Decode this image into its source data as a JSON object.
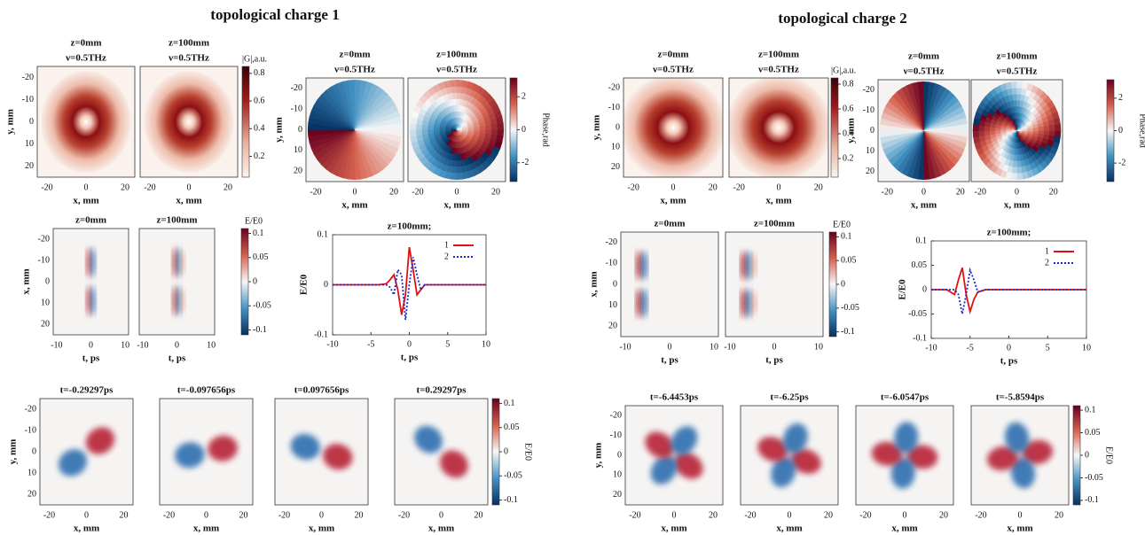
{
  "figures": [
    {
      "title": "topological charge 1",
      "intensity": {
        "panels": [
          {
            "z": "z=0mm",
            "nu": "ν=0.5THz"
          },
          {
            "z": "z=100mm",
            "nu": "ν=0.5THz"
          }
        ],
        "xlabel": "x, mm",
        "ylabel": "y, mm",
        "xlim": [
          -25,
          25
        ],
        "ylim": [
          -25,
          25
        ],
        "xticks": [
          -20,
          0,
          20
        ],
        "yticks": [
          -20,
          -10,
          0,
          10,
          20
        ],
        "colorbar": {
          "label": "|G|,a.u.",
          "lim": [
            0.05,
            0.85
          ],
          "ticks": [
            0.2,
            0.4,
            0.6,
            0.8
          ]
        }
      },
      "phase": {
        "panels": [
          {
            "z": "z=0mm",
            "nu": "ν=0.5THz"
          },
          {
            "z": "z=100mm",
            "nu": "ν=0.5THz"
          }
        ],
        "xlabel": "x, mm",
        "ylabel": "y, mm",
        "xlim": [
          -25,
          25
        ],
        "ylim": [
          -25,
          25
        ],
        "xticks": [
          -20,
          0,
          20
        ],
        "yticks": [
          -20,
          -10,
          0,
          10,
          20
        ],
        "colorbar": {
          "label": "Phase,rad",
          "lim": [
            -3.14,
            3.14
          ],
          "ticks": [
            -2,
            0,
            2
          ]
        }
      },
      "field": {
        "panels": [
          {
            "z": "z=0mm"
          },
          {
            "z": "z=100mm"
          }
        ],
        "xlabel": "t, ps",
        "ylabel": "x, mm",
        "xlim": [
          -11,
          11
        ],
        "ylim": [
          -25,
          25
        ],
        "xticks": [
          -10,
          0,
          10
        ],
        "yticks": [
          -20,
          -10,
          0,
          10,
          20
        ],
        "colorbar": {
          "label": "E/E0",
          "lim": [
            -0.11,
            0.11
          ],
          "ticks": [
            -0.1,
            -0.05,
            0,
            0.05,
            0.1
          ]
        }
      },
      "snapshots": {
        "panels": [
          {
            "t": "t=-0.29297ps"
          },
          {
            "t": "t=-0.097656ps"
          },
          {
            "t": "t=0.097656ps"
          },
          {
            "t": "t=0.29297ps"
          }
        ],
        "xlabel": "x, mm",
        "ylabel": "y, mm",
        "xlim": [
          -25,
          25
        ],
        "ylim": [
          -25,
          25
        ],
        "xticks": [
          -20,
          0,
          20
        ],
        "yticks": [
          -20,
          -10,
          0,
          10,
          20
        ],
        "colorbar": {
          "label": "E/E0",
          "lim": [
            -0.11,
            0.11
          ],
          "ticks": [
            -0.1,
            -0.05,
            0,
            0.05,
            0.1
          ]
        }
      }
    },
    {
      "title": "topological charge  2",
      "intensity": {
        "panels": [
          {
            "z": "z=0mm",
            "nu": "ν=0.5THz"
          },
          {
            "z": "z=100mm",
            "nu": "ν=0.5THz"
          }
        ],
        "xlabel": "x, mm",
        "ylabel": "y, mm",
        "xlim": [
          -25,
          25
        ],
        "ylim": [
          -25,
          25
        ],
        "xticks": [
          -20,
          0,
          20
        ],
        "yticks": [
          -20,
          -10,
          0,
          10,
          20
        ],
        "colorbar": {
          "label": "|G|,a.u.",
          "lim": [
            0.05,
            0.85
          ],
          "ticks": [
            0.2,
            0.4,
            0.6,
            0.8
          ]
        }
      },
      "phase": {
        "panels": [
          {
            "z": "z=0mm",
            "nu": "ν=0.5THz"
          },
          {
            "z": "z=100mm",
            "nu": "ν=0.5THz"
          }
        ],
        "xlabel": "x, mm",
        "ylabel": "y, mm",
        "xlim": [
          -25,
          25
        ],
        "ylim": [
          -25,
          25
        ],
        "xticks": [
          -20,
          0,
          20
        ],
        "yticks": [
          -20,
          -10,
          0,
          10,
          20
        ],
        "colorbar": {
          "label": "Phase,rad",
          "lim": [
            -3.14,
            3.14
          ],
          "ticks": [
            -2,
            0,
            2
          ]
        }
      },
      "field": {
        "panels": [
          {
            "z": "z=0mm"
          },
          {
            "z": "z=100mm"
          }
        ],
        "xlabel": "t, ps",
        "ylabel": "x, mm",
        "xlim": [
          -11,
          11
        ],
        "ylim": [
          -25,
          25
        ],
        "xticks": [
          -10,
          0,
          10
        ],
        "yticks": [
          -20,
          -10,
          0,
          10,
          20
        ],
        "colorbar": {
          "label": "E/E0",
          "lim": [
            -0.11,
            0.11
          ],
          "ticks": [
            -0.1,
            -0.05,
            0,
            0.05,
            0.1
          ]
        }
      },
      "snapshots": {
        "panels": [
          {
            "t": "t=-6.4453ps"
          },
          {
            "t": "t=-6.25ps"
          },
          {
            "t": "t=-6.0547ps"
          },
          {
            "t": "t=-5.8594ps"
          }
        ],
        "xlabel": "x, mm",
        "ylabel": "y, mm",
        "xlim": [
          -25,
          25
        ],
        "ylim": [
          -25,
          25
        ],
        "xticks": [
          -20,
          0,
          20
        ],
        "yticks": [
          -20,
          -10,
          0,
          10,
          20
        ],
        "colorbar": {
          "label": "E/E0",
          "lim": [
            -0.11,
            0.11
          ],
          "ticks": [
            -0.1,
            -0.05,
            0,
            0.05,
            0.1
          ]
        }
      }
    }
  ],
  "chart_data": [
    {
      "type": "line",
      "title": "z=100mm;",
      "xlabel": "t, ps",
      "ylabel": "E/E0",
      "x": [
        -10,
        -4,
        -3,
        -2.5,
        -2,
        -1.5,
        -1,
        -0.5,
        0,
        0.5,
        1,
        1.5,
        2,
        3,
        4,
        10
      ],
      "series": [
        {
          "name": "1",
          "color": "#e01010",
          "style": "solid",
          "values": [
            0,
            0,
            0.002,
            0.01,
            0.02,
            -0.01,
            -0.06,
            -0.02,
            0.075,
            0.03,
            -0.02,
            -0.01,
            0,
            0,
            0,
            0
          ]
        },
        {
          "name": "2",
          "color": "#1a2ad0",
          "style": "dotted",
          "values": [
            0,
            0,
            0,
            -0.005,
            -0.02,
            0.03,
            0.02,
            -0.07,
            0,
            0.055,
            0.02,
            -0.01,
            0,
            0,
            0,
            0
          ]
        }
      ],
      "xlim": [
        -10,
        10
      ],
      "ylim": [
        -0.1,
        0.1
      ],
      "xticks": [
        -10,
        -5,
        0,
        5,
        10
      ],
      "yticks": [
        -0.1,
        0,
        0.1
      ],
      "legend": "upper right"
    },
    {
      "type": "line",
      "title": "z=100mm;",
      "xlabel": "t, ps",
      "ylabel": "E/E0",
      "x": [
        -10,
        -8,
        -7,
        -6.5,
        -6,
        -5.5,
        -5,
        -4.5,
        -4,
        -3,
        10
      ],
      "series": [
        {
          "name": "1",
          "color": "#e01010",
          "style": "solid",
          "values": [
            0,
            0,
            -0.01,
            0.02,
            0.045,
            -0.01,
            -0.045,
            -0.02,
            -0.005,
            0,
            0
          ]
        },
        {
          "name": "2",
          "color": "#1a2ad0",
          "style": "dotted",
          "values": [
            0,
            0,
            0,
            -0.01,
            -0.05,
            -0.01,
            0.04,
            0.02,
            -0.005,
            0,
            0
          ]
        }
      ],
      "xlim": [
        -10,
        10
      ],
      "ylim": [
        -0.1,
        0.1
      ],
      "xticks": [
        -10,
        -5,
        0,
        5,
        10
      ],
      "yticks": [
        -0.1,
        -0.05,
        0,
        0.05,
        0.1
      ],
      "legend": "upper right"
    }
  ]
}
